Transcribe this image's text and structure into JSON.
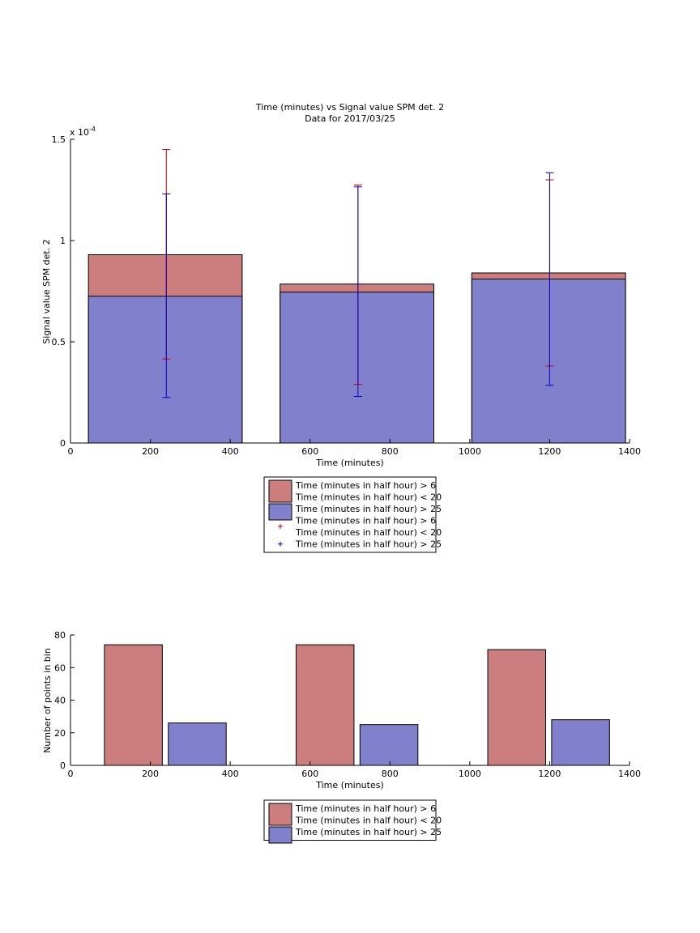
{
  "chart_data": [
    {
      "type": "bar",
      "title": "Time (minutes) vs Signal value SPM det. 2",
      "subtitle": "Data for 2017/03/25",
      "xlabel": "Time (minutes)",
      "ylabel": "Signal value SPM det. 2",
      "exponent_label": "x 10",
      "exponent_power": "-4",
      "xlim": [
        0,
        1400
      ],
      "ylim": [
        0,
        1.5
      ],
      "y_scale_factor": "1e-4",
      "x_ticks": [
        "0",
        "200",
        "400",
        "600",
        "800",
        "1000",
        "1200",
        "1400"
      ],
      "y_ticks": [
        "0",
        "0.5",
        "1",
        "1.5"
      ],
      "grid": false,
      "bins": [
        {
          "x_start": 45,
          "x_end": 430,
          "center": 240
        },
        {
          "x_start": 525,
          "x_end": 910,
          "center": 720
        },
        {
          "x_start": 1005,
          "x_end": 1390,
          "center": 1200
        }
      ],
      "series": [
        {
          "name": "Time (minutes in half hour) > 6 Time (minutes in half hour) < 20",
          "color": "#cc7e7e",
          "values": [
            0.93,
            0.785,
            0.84
          ],
          "error_low": [
            0.415,
            0.29,
            0.38
          ],
          "error_high": [
            1.45,
            1.275,
            1.3
          ],
          "error_color": "#cc0000"
        },
        {
          "name": "Time (minutes in half hour) > 25",
          "color": "#8080cc",
          "values": [
            0.725,
            0.745,
            0.81
          ],
          "error_low": [
            0.225,
            0.23,
            0.285
          ],
          "error_high": [
            1.23,
            1.265,
            1.335
          ],
          "error_color": "#0000cc"
        }
      ],
      "legend": {
        "placement": "below",
        "entries": [
          {
            "kind": "patch",
            "color": "#cc7e7e",
            "lines": [
              "Time (minutes in half hour) > 6",
              "Time (minutes in half hour) < 20"
            ]
          },
          {
            "kind": "patch",
            "color": "#8080cc",
            "lines": [
              "Time (minutes in half hour) > 25"
            ]
          },
          {
            "kind": "marker",
            "color": "#cc0000",
            "lines": [
              "Time (minutes in half hour) > 6",
              "Time (minutes in half hour) < 20"
            ]
          },
          {
            "kind": "marker",
            "color": "#0000cc",
            "lines": [
              "Time (minutes in half hour) > 25"
            ]
          }
        ]
      }
    },
    {
      "type": "bar",
      "title": "",
      "xlabel": "Time (minutes)",
      "ylabel": "Number of points in bin",
      "xlim": [
        0,
        1400
      ],
      "ylim": [
        0,
        80
      ],
      "x_ticks": [
        "0",
        "200",
        "400",
        "600",
        "800",
        "1000",
        "1200",
        "1400"
      ],
      "y_ticks": [
        "0",
        "20",
        "40",
        "60",
        "80"
      ],
      "grid": false,
      "bars": [
        {
          "x_start": 85,
          "x_end": 230,
          "value": 74,
          "series": 0
        },
        {
          "x_start": 245,
          "x_end": 390,
          "value": 26,
          "series": 1
        },
        {
          "x_start": 565,
          "x_end": 710,
          "value": 74,
          "series": 0
        },
        {
          "x_start": 725,
          "x_end": 870,
          "value": 25,
          "series": 1
        },
        {
          "x_start": 1045,
          "x_end": 1190,
          "value": 71,
          "series": 0
        },
        {
          "x_start": 1205,
          "x_end": 1350,
          "value": 28,
          "series": 1
        }
      ],
      "series": [
        {
          "name": "Time (minutes in half hour) > 6 Time (minutes in half hour) < 20",
          "color": "#cc7e7e"
        },
        {
          "name": "Time (minutes in half hour) > 25",
          "color": "#8080cc"
        }
      ],
      "legend": {
        "placement": "below",
        "entries": [
          {
            "kind": "patch",
            "color": "#cc7e7e",
            "lines": [
              "Time (minutes in half hour) > 6",
              "Time (minutes in half hour) < 20"
            ]
          },
          {
            "kind": "patch",
            "color": "#8080cc",
            "lines": [
              "Time (minutes in half hour) > 25"
            ]
          }
        ]
      }
    }
  ]
}
